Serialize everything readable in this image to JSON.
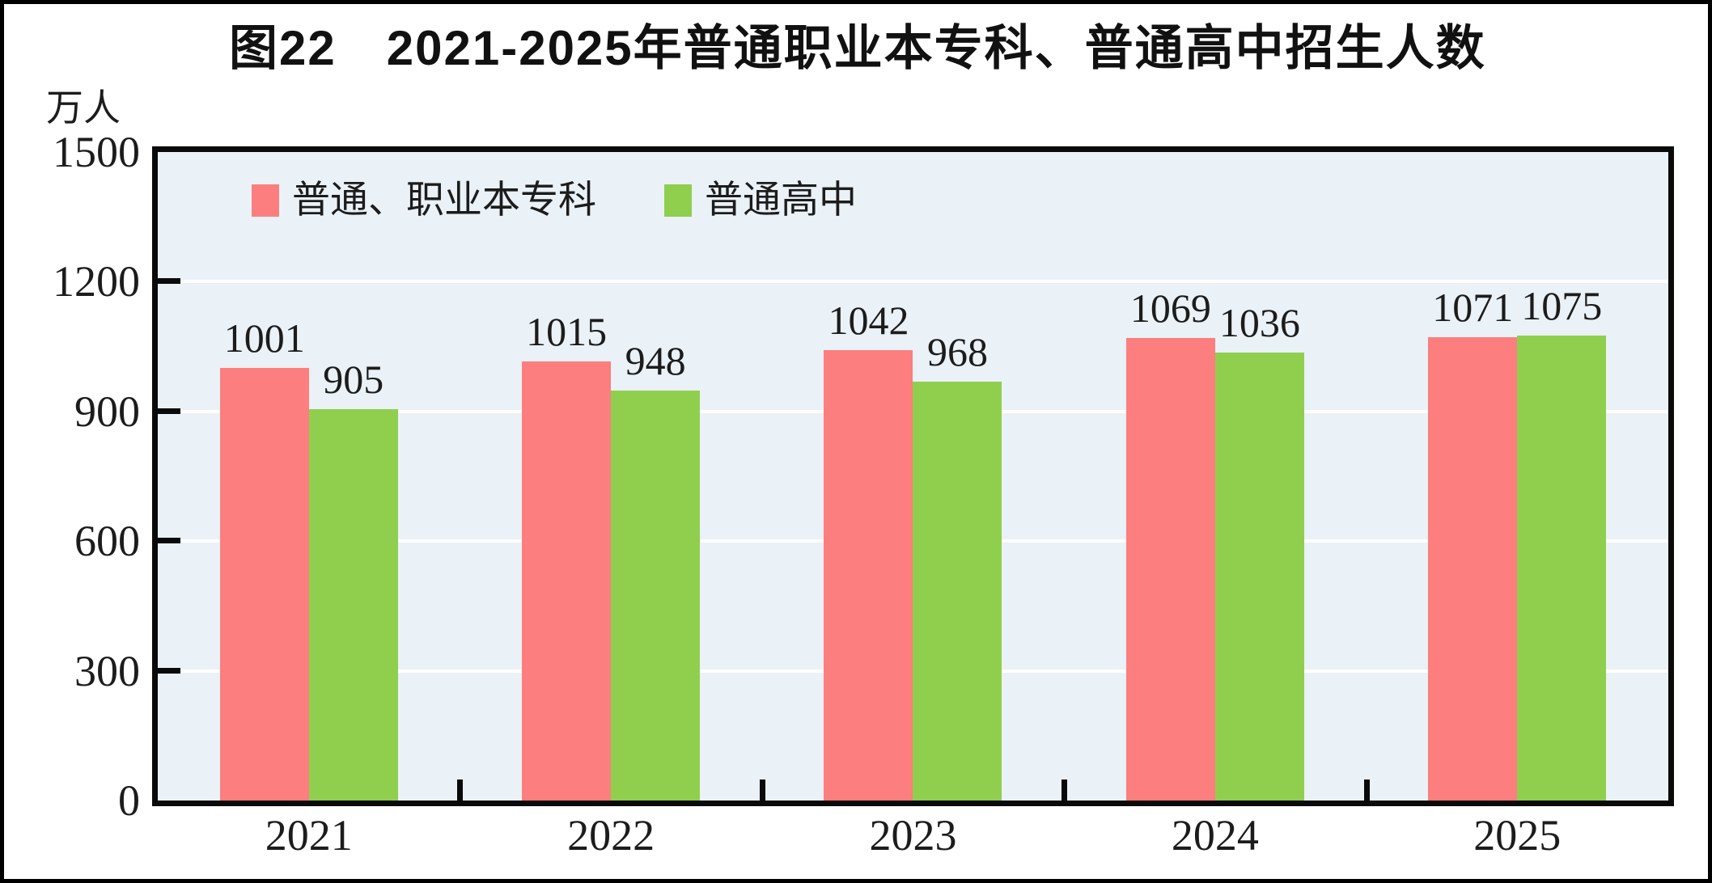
{
  "figure": {
    "title": "图22　2021-2025年普通职业本专科、普通高中招生人数",
    "unit_label": "万人"
  },
  "chart_data": {
    "type": "bar",
    "title": "图22　2021-2025年普通职业本专科、普通高中招生人数",
    "categories": [
      "2021",
      "2022",
      "2023",
      "2024",
      "2025"
    ],
    "series": [
      {
        "name": "普通、职业本专科",
        "color": "#FC7E7E",
        "values": [
          1001,
          1015,
          1042,
          1069,
          1071
        ]
      },
      {
        "name": "普通高中",
        "color": "#90CF4E",
        "values": [
          905,
          948,
          968,
          1036,
          1075
        ]
      }
    ],
    "xlabel": "",
    "ylabel": "万人",
    "ylim": [
      0,
      1500
    ],
    "yticks": [
      0,
      300,
      600,
      900,
      1200,
      1500
    ],
    "grid": true,
    "grid_color": "#FFFFFF",
    "plot_background": "#EAF1F7",
    "axis_color": "#0A0A0A",
    "text_color": "#1C1C1C",
    "legend_position": "top-left",
    "data_labels_shown": true
  }
}
